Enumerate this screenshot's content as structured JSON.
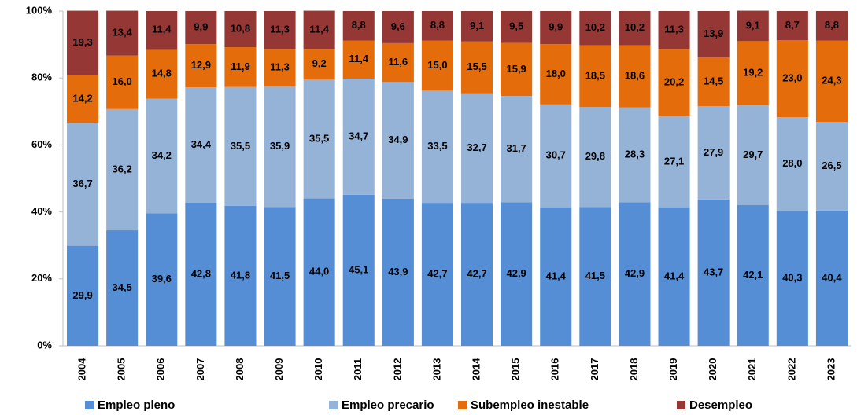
{
  "chart_data": {
    "type": "stacked_bar",
    "categories": [
      "2004",
      "2005",
      "2006",
      "2007",
      "2008",
      "2009",
      "2010",
      "2011",
      "2012",
      "2013",
      "2014",
      "2015",
      "2016",
      "2017",
      "2018",
      "2019",
      "2020",
      "2021",
      "2022",
      "2023"
    ],
    "series": [
      {
        "name": "Empleo pleno",
        "color": "#558ed5",
        "values": [
          29.9,
          34.5,
          39.6,
          42.8,
          41.8,
          41.5,
          44.0,
          45.1,
          43.9,
          42.7,
          42.7,
          42.9,
          41.4,
          41.5,
          42.9,
          41.4,
          43.7,
          42.1,
          40.3,
          40.4
        ],
        "value_labels": [
          "29,9",
          "34,5",
          "39,6",
          "42,8",
          "41,8",
          "41,5",
          "44,0",
          "45,1",
          "43,9",
          "42,7",
          "42,7",
          "42,9",
          "41,4",
          "41,5",
          "42,9",
          "41,4",
          "43,7",
          "42,1",
          "40,3",
          "40,4"
        ]
      },
      {
        "name": "Empleo precario",
        "color": "#95b3d7",
        "values": [
          36.7,
          36.2,
          34.2,
          34.4,
          35.5,
          35.9,
          35.5,
          34.7,
          34.9,
          33.5,
          32.7,
          31.7,
          30.7,
          29.8,
          28.3,
          27.1,
          27.9,
          29.7,
          28.0,
          26.5
        ],
        "value_labels": [
          "36,7",
          "36,2",
          "34,2",
          "34,4",
          "35,5",
          "35,9",
          "35,5",
          "34,7",
          "34,9",
          "33,5",
          "32,7",
          "31,7",
          "30,7",
          "29,8",
          "28,3",
          "27,1",
          "27,9",
          "29,7",
          "28,0",
          "26,5"
        ]
      },
      {
        "name": "Subempleo inestable",
        "color": "#e46c0a",
        "values": [
          14.2,
          16.0,
          14.8,
          12.9,
          11.9,
          11.3,
          9.2,
          11.4,
          11.6,
          15.0,
          15.5,
          15.9,
          18.0,
          18.5,
          18.6,
          20.2,
          14.5,
          19.2,
          23.0,
          24.3
        ],
        "value_labels": [
          "14,2",
          "16,0",
          "14,8",
          "12,9",
          "11,9",
          "11,3",
          "9,2",
          "11,4",
          "11,6",
          "15,0",
          "15,5",
          "15,9",
          "18,0",
          "18,5",
          "18,6",
          "20,2",
          "14,5",
          "19,2",
          "23,0",
          "24,3"
        ]
      },
      {
        "name": "Desempleo",
        "color": "#953735",
        "values": [
          19.3,
          13.4,
          11.4,
          9.9,
          10.8,
          11.3,
          11.4,
          8.8,
          9.6,
          8.8,
          9.1,
          9.5,
          9.9,
          10.2,
          10.2,
          11.3,
          13.9,
          9.1,
          8.7,
          8.8
        ],
        "value_labels": [
          "19,3",
          "13,4",
          "11,4",
          "9,9",
          "10,8",
          "11,3",
          "11,4",
          "8,8",
          "9,6",
          "8,8",
          "9,1",
          "9,5",
          "9,9",
          "10,2",
          "10,2",
          "11,3",
          "13,9",
          "9,1",
          "8,7",
          "8,8"
        ]
      }
    ],
    "ylim": [
      0,
      100
    ],
    "yticks": [
      {
        "value": 0,
        "label": "0%"
      },
      {
        "value": 20,
        "label": "20%"
      },
      {
        "value": 40,
        "label": "40%"
      },
      {
        "value": 60,
        "label": "60%"
      },
      {
        "value": 80,
        "label": "80%"
      },
      {
        "value": 100,
        "label": "100%"
      }
    ],
    "grid": false,
    "legend": "bottom"
  }
}
